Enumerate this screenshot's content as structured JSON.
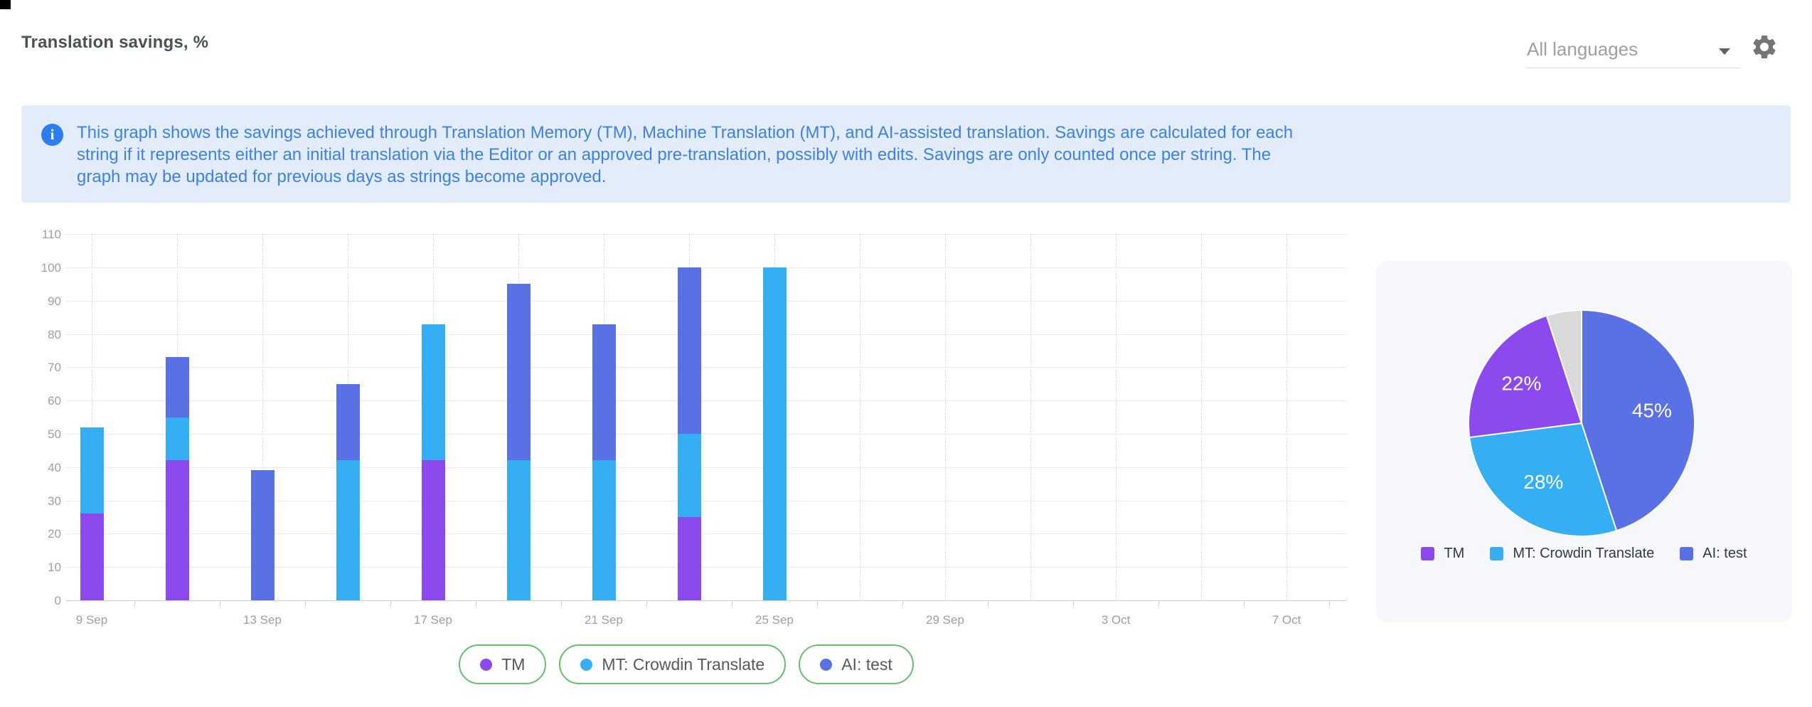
{
  "header": {
    "title": "Translation savings, %",
    "language_selector": {
      "value": "All languages"
    }
  },
  "info_banner": {
    "text": "This graph shows the savings achieved through Translation Memory (TM), Machine Translation (MT), and AI-assisted translation. Savings are calculated for each string if it represents either an initial translation via the Editor or an approved pre-translation, possibly with edits. Savings are only counted once per string. The graph may be updated for previous days as strings become approved."
  },
  "colors": {
    "tm": "#8c49ee",
    "mt": "#36aef4",
    "ai": "#5a71e6",
    "other": "#d9d9d9",
    "banner_bg": "#e3ecfa",
    "banner_text": "#3d80e6",
    "pill_border": "#69bd6d"
  },
  "chart_data": [
    {
      "type": "bar",
      "stacked": true,
      "title": "Translation savings, %",
      "categories": [
        "9 Sep",
        "11 Sep",
        "13 Sep",
        "15 Sep",
        "17 Sep",
        "19 Sep",
        "21 Sep",
        "23 Sep",
        "25 Sep"
      ],
      "series": [
        {
          "name": "TM",
          "color": "#8c49ee",
          "values": [
            26,
            42,
            0,
            0,
            42,
            0,
            0,
            25,
            0
          ]
        },
        {
          "name": "MT: Crowdin Translate",
          "color": "#36aef4",
          "values": [
            26,
            13,
            0,
            42,
            41,
            42,
            42,
            25,
            100
          ]
        },
        {
          "name": "AI: test",
          "color": "#5a71e6",
          "values": [
            0,
            18,
            39,
            23,
            0,
            53,
            41,
            50,
            0
          ]
        }
      ],
      "totals": [
        52,
        73,
        39,
        65,
        83,
        95,
        83,
        100,
        100
      ],
      "xlabel": "",
      "ylabel": "",
      "ylim": [
        0,
        110
      ],
      "ytick_step": 10,
      "x_axis_labels": [
        "9 Sep",
        "13 Sep",
        "17 Sep",
        "21 Sep",
        "25 Sep",
        "29 Sep",
        "3 Oct",
        "7 Oct"
      ],
      "grid": true,
      "legend_position": "bottom"
    },
    {
      "type": "pie",
      "slices": [
        {
          "name": "AI: test",
          "value": 45,
          "label": "45%",
          "color": "#5a71e6"
        },
        {
          "name": "MT: Crowdin Translate",
          "value": 28,
          "label": "28%",
          "color": "#36aef4"
        },
        {
          "name": "TM",
          "value": 22,
          "label": "22%",
          "color": "#8c49ee"
        },
        {
          "name": "Other",
          "value": 5,
          "label": "",
          "color": "#d9d9d9"
        }
      ],
      "legend": [
        "TM",
        "MT: Crowdin Translate",
        "AI: test"
      ],
      "legend_position": "bottom"
    }
  ]
}
